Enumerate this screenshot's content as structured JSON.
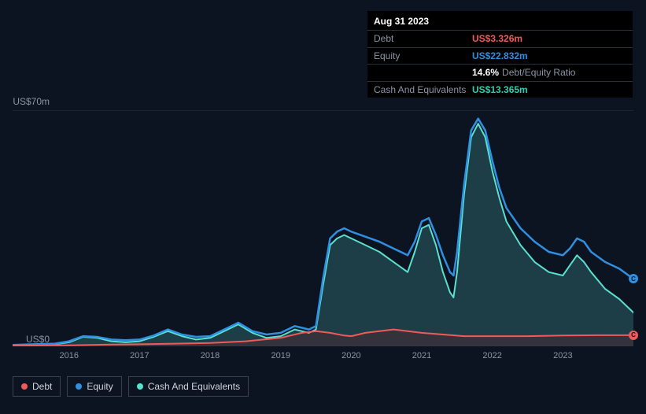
{
  "tooltip": {
    "date": "Aug 31 2023",
    "rows": [
      {
        "label": "Debt",
        "value": "US$3.326m",
        "color": "#f05a5a"
      },
      {
        "label": "Equity",
        "value": "US$22.832m",
        "color": "#2f8fe0"
      },
      {
        "label": "",
        "value": "14.6%",
        "suffix": "Debt/Equity Ratio",
        "color": "#ffffff"
      },
      {
        "label": "Cash And Equivalents",
        "value": "US$13.365m",
        "color": "#2fceb0"
      }
    ]
  },
  "chart": {
    "type": "area",
    "background_color": "#0d1421",
    "grid_color": "#2a2f3a",
    "axis_text_color": "#8c94a6",
    "y_axis": {
      "min": 0,
      "max": 70,
      "ticks": [
        {
          "v": 70,
          "label": "US$70m"
        },
        {
          "v": 0,
          "label": "US$0"
        }
      ]
    },
    "x_axis": {
      "min": 2015.2,
      "max": 2024.0,
      "ticks": [
        2016,
        2017,
        2018,
        2019,
        2020,
        2021,
        2022,
        2023
      ]
    },
    "series": [
      {
        "id": "cash",
        "label": "Cash And Equivalents",
        "stroke": "#58e0d0",
        "fill": "#2a5a60",
        "fill_opacity": 0.6,
        "line_width": 2,
        "points": [
          [
            2015.2,
            0.3
          ],
          [
            2015.5,
            0.4
          ],
          [
            2015.8,
            0.6
          ],
          [
            2016.0,
            1.2
          ],
          [
            2016.2,
            2.8
          ],
          [
            2016.4,
            2.5
          ],
          [
            2016.6,
            1.5
          ],
          [
            2016.8,
            1.2
          ],
          [
            2017.0,
            1.5
          ],
          [
            2017.2,
            2.8
          ],
          [
            2017.4,
            4.5
          ],
          [
            2017.6,
            3.0
          ],
          [
            2017.8,
            2.0
          ],
          [
            2018.0,
            2.5
          ],
          [
            2018.2,
            4.5
          ],
          [
            2018.4,
            6.5
          ],
          [
            2018.6,
            4.0
          ],
          [
            2018.8,
            2.5
          ],
          [
            2019.0,
            3.0
          ],
          [
            2019.2,
            5.0
          ],
          [
            2019.4,
            4.0
          ],
          [
            2019.5,
            5.0
          ],
          [
            2019.6,
            18.0
          ],
          [
            2019.7,
            30.0
          ],
          [
            2019.8,
            32.0
          ],
          [
            2019.9,
            33.0
          ],
          [
            2020.0,
            32.0
          ],
          [
            2020.2,
            30.0
          ],
          [
            2020.4,
            28.0
          ],
          [
            2020.6,
            25.0
          ],
          [
            2020.8,
            22.0
          ],
          [
            2020.9,
            28.0
          ],
          [
            2021.0,
            35.0
          ],
          [
            2021.1,
            36.0
          ],
          [
            2021.2,
            30.0
          ],
          [
            2021.3,
            22.0
          ],
          [
            2021.4,
            16.0
          ],
          [
            2021.45,
            14.5
          ],
          [
            2021.5,
            22.0
          ],
          [
            2021.6,
            45.0
          ],
          [
            2021.7,
            62.0
          ],
          [
            2021.8,
            66.0
          ],
          [
            2021.9,
            62.0
          ],
          [
            2022.0,
            52.0
          ],
          [
            2022.1,
            44.0
          ],
          [
            2022.2,
            37.0
          ],
          [
            2022.4,
            30.0
          ],
          [
            2022.6,
            25.0
          ],
          [
            2022.8,
            22.0
          ],
          [
            2023.0,
            21.0
          ],
          [
            2023.1,
            24.0
          ],
          [
            2023.2,
            27.0
          ],
          [
            2023.3,
            25.0
          ],
          [
            2023.4,
            22.0
          ],
          [
            2023.6,
            17.0
          ],
          [
            2023.8,
            14.0
          ],
          [
            2024.0,
            10.0
          ]
        ]
      },
      {
        "id": "equity",
        "label": "Equity",
        "stroke": "#2f8fe0",
        "fill": "none",
        "line_width": 2.5,
        "points": [
          [
            2015.2,
            0.4
          ],
          [
            2015.5,
            0.6
          ],
          [
            2015.8,
            0.8
          ],
          [
            2016.0,
            1.5
          ],
          [
            2016.2,
            3.0
          ],
          [
            2016.4,
            2.8
          ],
          [
            2016.6,
            2.0
          ],
          [
            2016.8,
            1.8
          ],
          [
            2017.0,
            2.0
          ],
          [
            2017.2,
            3.2
          ],
          [
            2017.4,
            5.0
          ],
          [
            2017.6,
            3.5
          ],
          [
            2017.8,
            2.8
          ],
          [
            2018.0,
            3.0
          ],
          [
            2018.2,
            5.0
          ],
          [
            2018.4,
            7.0
          ],
          [
            2018.6,
            4.5
          ],
          [
            2018.8,
            3.5
          ],
          [
            2019.0,
            4.0
          ],
          [
            2019.2,
            6.0
          ],
          [
            2019.4,
            5.0
          ],
          [
            2019.5,
            6.0
          ],
          [
            2019.6,
            20.0
          ],
          [
            2019.7,
            32.0
          ],
          [
            2019.8,
            34.0
          ],
          [
            2019.9,
            35.0
          ],
          [
            2020.0,
            34.0
          ],
          [
            2020.2,
            32.5
          ],
          [
            2020.4,
            31.0
          ],
          [
            2020.6,
            29.0
          ],
          [
            2020.8,
            27.0
          ],
          [
            2020.9,
            31.0
          ],
          [
            2021.0,
            37.0
          ],
          [
            2021.1,
            38.0
          ],
          [
            2021.2,
            33.0
          ],
          [
            2021.3,
            27.0
          ],
          [
            2021.4,
            22.0
          ],
          [
            2021.45,
            21.0
          ],
          [
            2021.5,
            28.0
          ],
          [
            2021.6,
            48.0
          ],
          [
            2021.7,
            64.0
          ],
          [
            2021.8,
            67.5
          ],
          [
            2021.9,
            64.0
          ],
          [
            2022.0,
            55.0
          ],
          [
            2022.1,
            47.0
          ],
          [
            2022.2,
            41.0
          ],
          [
            2022.4,
            35.0
          ],
          [
            2022.6,
            31.0
          ],
          [
            2022.8,
            28.0
          ],
          [
            2023.0,
            27.0
          ],
          [
            2023.1,
            29.0
          ],
          [
            2023.2,
            32.0
          ],
          [
            2023.3,
            31.0
          ],
          [
            2023.4,
            28.0
          ],
          [
            2023.6,
            25.0
          ],
          [
            2023.8,
            23.0
          ],
          [
            2024.0,
            20.0
          ]
        ]
      },
      {
        "id": "debt",
        "label": "Debt",
        "stroke": "#f05a5a",
        "fill": "#4a2530",
        "fill_opacity": 0.5,
        "line_width": 2,
        "points": [
          [
            2015.2,
            0.2
          ],
          [
            2016.0,
            0.3
          ],
          [
            2016.5,
            0.5
          ],
          [
            2017.0,
            0.6
          ],
          [
            2017.5,
            0.8
          ],
          [
            2018.0,
            1.0
          ],
          [
            2018.5,
            1.5
          ],
          [
            2019.0,
            2.5
          ],
          [
            2019.3,
            4.0
          ],
          [
            2019.5,
            4.5
          ],
          [
            2019.7,
            4.0
          ],
          [
            2019.9,
            3.2
          ],
          [
            2020.0,
            3.0
          ],
          [
            2020.2,
            4.0
          ],
          [
            2020.4,
            4.5
          ],
          [
            2020.6,
            5.0
          ],
          [
            2020.8,
            4.5
          ],
          [
            2021.0,
            4.0
          ],
          [
            2021.3,
            3.5
          ],
          [
            2021.6,
            3.0
          ],
          [
            2022.0,
            3.0
          ],
          [
            2022.5,
            3.0
          ],
          [
            2023.0,
            3.2
          ],
          [
            2023.5,
            3.3
          ],
          [
            2024.0,
            3.3
          ]
        ]
      }
    ],
    "end_markers": [
      {
        "series": "equity",
        "x": 2024.0,
        "y": 20.0,
        "color": "#2f8fe0",
        "glyph": "C"
      },
      {
        "series": "debt",
        "x": 2024.0,
        "y": 3.3,
        "color": "#f05a5a",
        "glyph": "C"
      }
    ]
  },
  "legend": {
    "items": [
      {
        "id": "debt",
        "label": "Debt",
        "color": "#f05a5a"
      },
      {
        "id": "equity",
        "label": "Equity",
        "color": "#2f8fe0"
      },
      {
        "id": "cash",
        "label": "Cash And Equivalents",
        "color": "#58e0d0"
      }
    ]
  }
}
